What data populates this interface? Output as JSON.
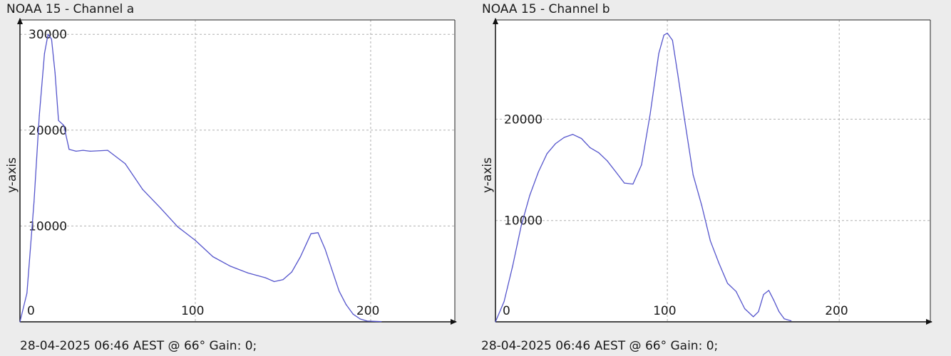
{
  "chart_data": [
    {
      "type": "line",
      "title": "NOAA 15 - Channel a",
      "footer": "28-04-2025 06:46 AEST @ 66° Gain: 0;",
      "ylabel": "y-axis",
      "xlabel": "",
      "xlim": [
        0,
        248
      ],
      "ylim": [
        0,
        31500
      ],
      "xticks": [
        0,
        100,
        200
      ],
      "yticks": [
        10000,
        20000,
        30000
      ],
      "grid": true,
      "series_color": "#5555cc",
      "x": [
        0,
        4,
        8,
        11,
        14,
        16,
        18,
        20,
        22,
        25,
        28,
        32,
        36,
        40,
        50,
        60,
        70,
        80,
        90,
        100,
        110,
        120,
        130,
        140,
        145,
        150,
        155,
        160,
        163,
        166,
        170,
        174,
        178,
        182,
        186,
        190,
        194,
        198,
        202,
        206
      ],
      "values": [
        0,
        3000,
        12500,
        21500,
        28000,
        30000,
        29500,
        26000,
        21000,
        20500,
        18000,
        17800,
        17900,
        17800,
        17900,
        16500,
        13800,
        11900,
        9900,
        8500,
        6800,
        5800,
        5100,
        4600,
        4200,
        4400,
        5200,
        6800,
        8000,
        9200,
        9300,
        7600,
        5400,
        3200,
        1800,
        800,
        300,
        80,
        50,
        30
      ]
    },
    {
      "type": "line",
      "title": "NOAA 15 - Channel b",
      "footer": "28-04-2025 06:46 AEST @ 66° Gain: 0;",
      "ylabel": "y-axis",
      "xlabel": "",
      "xlim": [
        0,
        253
      ],
      "ylim": [
        0,
        29800
      ],
      "xticks": [
        0,
        100,
        200
      ],
      "yticks": [
        10000,
        20000
      ],
      "grid": true,
      "series_color": "#5555cc",
      "x": [
        0,
        5,
        10,
        15,
        20,
        25,
        30,
        35,
        40,
        45,
        50,
        55,
        60,
        65,
        70,
        75,
        80,
        85,
        90,
        95,
        98,
        100,
        103,
        106,
        110,
        115,
        120,
        125,
        130,
        135,
        140,
        145,
        150,
        153,
        156,
        159,
        162,
        165,
        168,
        172
      ],
      "values": [
        0,
        2000,
        5500,
        9500,
        12500,
        14800,
        16600,
        17600,
        18200,
        18500,
        18100,
        17200,
        16700,
        15900,
        14800,
        13700,
        13600,
        15500,
        20500,
        26500,
        28300,
        28500,
        27800,
        24500,
        20000,
        14500,
        11500,
        8000,
        5800,
        3800,
        3000,
        1300,
        500,
        1000,
        2700,
        3100,
        2100,
        1000,
        300,
        100
      ]
    }
  ]
}
